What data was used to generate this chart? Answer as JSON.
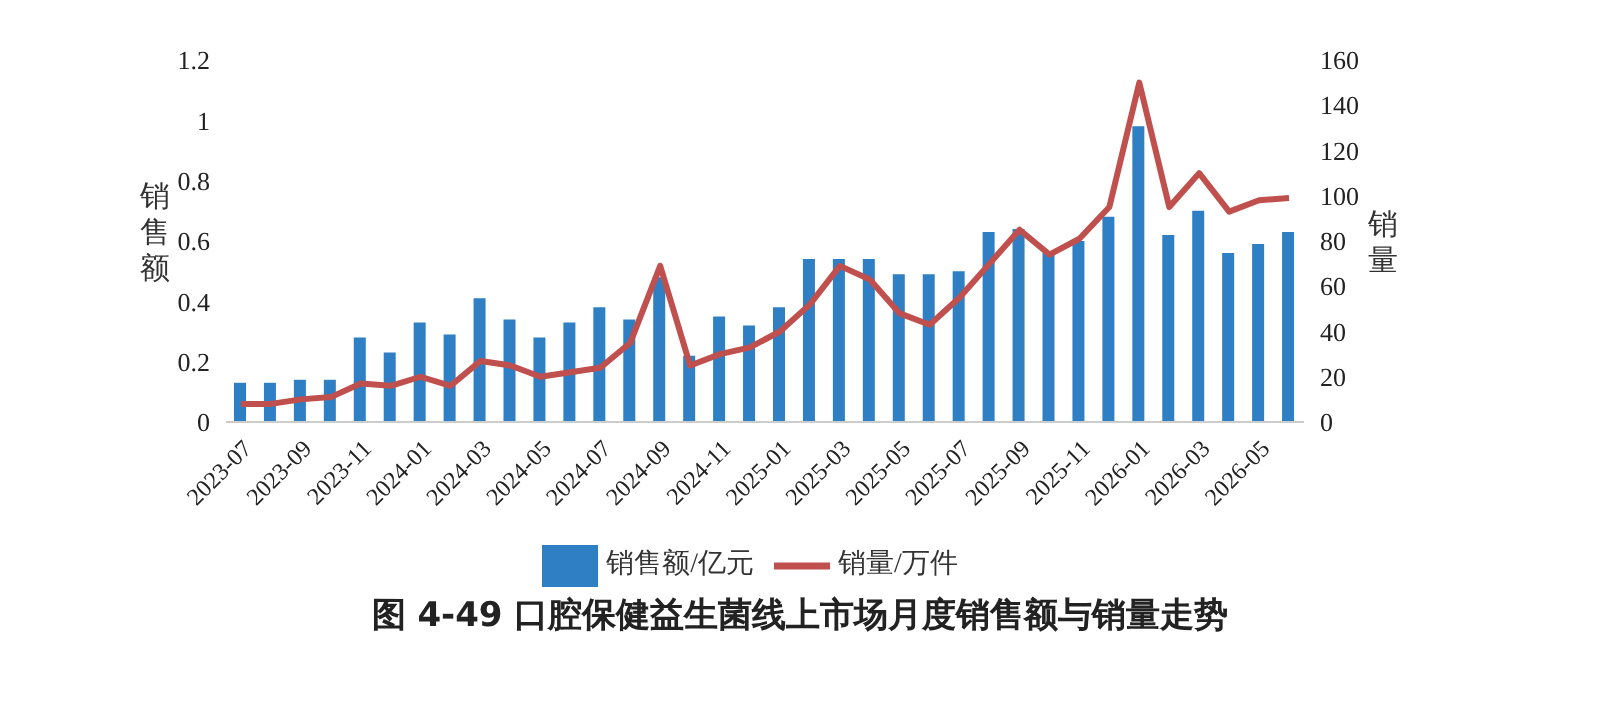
{
  "chart_data": {
    "type": "bar",
    "title": "图 4-49 口腔保健益生菌线上市场月度销售额与销量走势",
    "ylabel": "销售额",
    "y2label": "销量",
    "categories": [
      "2023-07",
      null,
      "2023-09",
      null,
      "2023-11",
      null,
      "2024-01",
      null,
      "2024-03",
      null,
      "2024-05",
      null,
      "2024-07",
      null,
      "2024-09",
      null,
      "2024-11",
      null,
      "2025-01",
      null,
      "2025-03",
      null,
      "2025-05",
      null,
      "2025-07",
      null,
      "2025-09",
      null,
      "2025-11",
      null,
      "2026-01",
      null,
      "2026-03",
      null,
      "2026-05",
      null
    ],
    "series": [
      {
        "name": "销售额/亿元",
        "color": "#2e7fc4",
        "values": [
          0.13,
          0.13,
          0.14,
          0.14,
          0.28,
          0.23,
          0.33,
          0.29,
          0.41,
          0.34,
          0.28,
          0.33,
          0.38,
          0.34,
          0.48,
          0.22,
          0.35,
          0.32,
          0.38,
          0.54,
          0.54,
          0.54,
          0.49,
          0.49,
          0.5,
          0.63,
          0.64,
          0.56,
          0.6,
          0.68,
          0.98,
          0.62,
          0.7,
          0.56,
          0.59,
          0.63
        ]
      },
      {
        "name": "销量/万件",
        "type": "line",
        "axis": "y2",
        "color": "#c0504d",
        "values": [
          8,
          8,
          10,
          11,
          17,
          16,
          20,
          16,
          27,
          25,
          20,
          22,
          24,
          35,
          69,
          25,
          30,
          33,
          40,
          52,
          69,
          63,
          48,
          43,
          55,
          70,
          85,
          74,
          81,
          95,
          150,
          95,
          110,
          93,
          98,
          99
        ]
      }
    ],
    "ylim": [
      0,
      1.2
    ],
    "yticks": [
      0,
      0.2,
      0.4,
      0.6,
      0.8,
      1,
      1.2
    ],
    "y2lim": [
      0,
      160
    ],
    "y2ticks": [
      0,
      20,
      40,
      60,
      80,
      100,
      120,
      140,
      160
    ],
    "grid": false,
    "legend": "bottom",
    "marker": "none",
    "line_style": "solid"
  }
}
